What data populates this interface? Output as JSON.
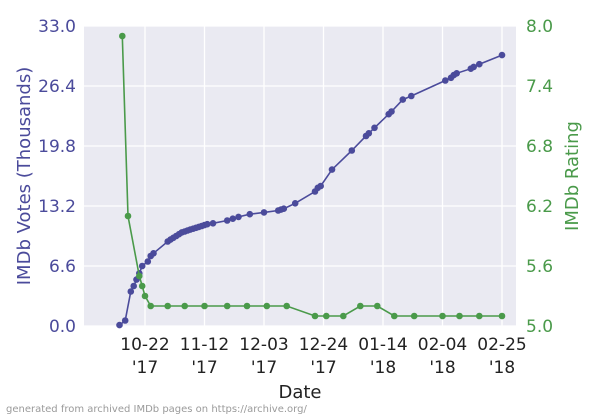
{
  "chart_data": {
    "type": "line",
    "xlabel": "Date",
    "ylabel_left": "IMDb Votes (Thousands)",
    "ylabel_right": "IMDb Rating",
    "ylim_left": [
      0,
      33
    ],
    "ylim_right": [
      5,
      8
    ],
    "left_ticks": [
      "0.0",
      "6.6",
      "13.2",
      "19.8",
      "26.4",
      "33.0"
    ],
    "right_ticks": [
      "5.0",
      "5.6",
      "6.2",
      "6.8",
      "7.4",
      "8.0"
    ],
    "x_ticks": [
      {
        "date": "2017-10-22",
        "line1": "10-22",
        "line2": "'17"
      },
      {
        "date": "2017-11-12",
        "line1": "11-12",
        "line2": "'17"
      },
      {
        "date": "2017-12-03",
        "line1": "12-03",
        "line2": "'17"
      },
      {
        "date": "2017-12-24",
        "line1": "12-24",
        "line2": "'17"
      },
      {
        "date": "2018-01-14",
        "line1": "01-14",
        "line2": "'18"
      },
      {
        "date": "2018-02-04",
        "line1": "02-04",
        "line2": "'18"
      },
      {
        "date": "2018-02-25",
        "line1": "02-25",
        "line2": "'18"
      }
    ],
    "grid": true,
    "colors": {
      "votes": "#4b4b9b",
      "rating": "#4a9a4a",
      "background": "#eaeaf2",
      "grid": "#ffffff",
      "left_tick_text": "#4b4b9b",
      "right_tick_text": "#4a9a4a"
    },
    "series": [
      {
        "axis": "left",
        "data": [
          [
            "2017-10-13",
            0.1
          ],
          [
            "2017-10-15",
            0.6
          ],
          [
            "2017-10-17",
            3.8
          ],
          [
            "2017-10-18",
            4.4
          ],
          [
            "2017-10-19",
            5.1
          ],
          [
            "2017-10-20",
            5.8
          ],
          [
            "2017-10-21",
            6.6
          ],
          [
            "2017-10-23",
            7.1
          ],
          [
            "2017-10-24",
            7.7
          ],
          [
            "2017-10-25",
            8.0
          ],
          [
            "2017-10-30",
            9.3
          ],
          [
            "2017-10-31",
            9.5
          ],
          [
            "2017-11-01",
            9.7
          ],
          [
            "2017-11-02",
            9.9
          ],
          [
            "2017-11-03",
            10.1
          ],
          [
            "2017-11-04",
            10.3
          ],
          [
            "2017-11-05",
            10.4
          ],
          [
            "2017-11-06",
            10.5
          ],
          [
            "2017-11-07",
            10.6
          ],
          [
            "2017-11-08",
            10.7
          ],
          [
            "2017-11-09",
            10.8
          ],
          [
            "2017-11-10",
            10.9
          ],
          [
            "2017-11-11",
            11.0
          ],
          [
            "2017-11-12",
            11.1
          ],
          [
            "2017-11-13",
            11.2
          ],
          [
            "2017-11-15",
            11.3
          ],
          [
            "2017-11-20",
            11.6
          ],
          [
            "2017-11-22",
            11.8
          ],
          [
            "2017-11-24",
            12.0
          ],
          [
            "2017-11-28",
            12.3
          ],
          [
            "2017-12-03",
            12.5
          ],
          [
            "2017-12-08",
            12.7
          ],
          [
            "2017-12-09",
            12.8
          ],
          [
            "2017-12-10",
            12.9
          ],
          [
            "2017-12-14",
            13.5
          ],
          [
            "2017-12-21",
            14.8
          ],
          [
            "2017-12-22",
            15.2
          ],
          [
            "2017-12-23",
            15.4
          ],
          [
            "2017-12-27",
            17.2
          ],
          [
            "2018-01-03",
            19.3
          ],
          [
            "2018-01-08",
            20.9
          ],
          [
            "2018-01-09",
            21.2
          ],
          [
            "2018-01-11",
            21.8
          ],
          [
            "2018-01-16",
            23.3
          ],
          [
            "2018-01-17",
            23.6
          ],
          [
            "2018-01-21",
            24.9
          ],
          [
            "2018-01-24",
            25.3
          ],
          [
            "2018-02-05",
            27.0
          ],
          [
            "2018-02-07",
            27.3
          ],
          [
            "2018-02-08",
            27.6
          ],
          [
            "2018-02-09",
            27.8
          ],
          [
            "2018-02-14",
            28.3
          ],
          [
            "2018-02-15",
            28.5
          ],
          [
            "2018-02-17",
            28.8
          ],
          [
            "2018-02-25",
            29.8
          ]
        ]
      },
      {
        "axis": "right",
        "data": [
          [
            "2017-10-14",
            7.9
          ],
          [
            "2017-10-16",
            6.1
          ],
          [
            "2017-10-20",
            5.5
          ],
          [
            "2017-10-21",
            5.4
          ],
          [
            "2017-10-22",
            5.3
          ],
          [
            "2017-10-24",
            5.2
          ],
          [
            "2017-10-30",
            5.2
          ],
          [
            "2017-11-05",
            5.2
          ],
          [
            "2017-11-12",
            5.2
          ],
          [
            "2017-11-20",
            5.2
          ],
          [
            "2017-11-27",
            5.2
          ],
          [
            "2017-12-04",
            5.2
          ],
          [
            "2017-12-11",
            5.2
          ],
          [
            "2017-12-21",
            5.1
          ],
          [
            "2017-12-25",
            5.1
          ],
          [
            "2017-12-31",
            5.1
          ],
          [
            "2018-01-06",
            5.2
          ],
          [
            "2018-01-12",
            5.2
          ],
          [
            "2018-01-18",
            5.1
          ],
          [
            "2018-01-25",
            5.1
          ],
          [
            "2018-02-04",
            5.1
          ],
          [
            "2018-02-10",
            5.1
          ],
          [
            "2018-02-17",
            5.1
          ],
          [
            "2018-02-25",
            5.1
          ]
        ]
      }
    ]
  },
  "footer": {
    "credit": "generated from archived IMDb pages on https://archive.org/"
  }
}
